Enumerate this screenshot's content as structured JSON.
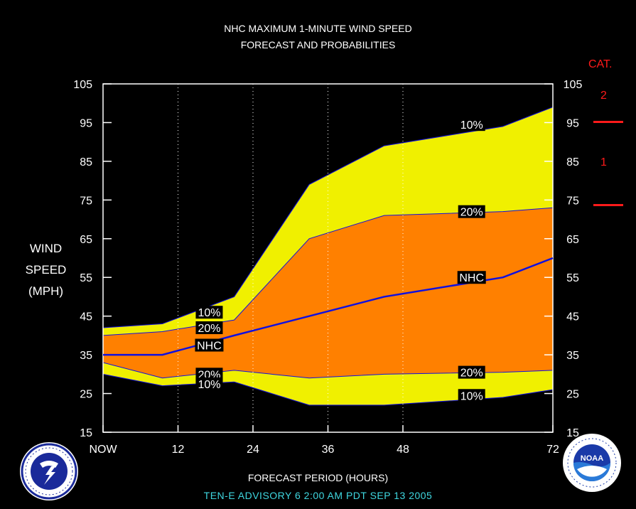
{
  "header": {
    "title_line1": "NHC MAXIMUM 1-MINUTE WIND SPEED",
    "title_line2": "FORECAST AND PROBABILITIES"
  },
  "category_scale": {
    "title": "CAT.",
    "labels": [
      "2",
      "1"
    ],
    "color": "#ff1a1a"
  },
  "footer": {
    "xlabel": "FORECAST PERIOD (HOURS)",
    "advisory": "TEN-E   ADVISORY  6 2:00  AM  PDT  SEP  13  2005"
  },
  "logos": {
    "left": "nws-logo-icon",
    "right": "noaa-logo-icon",
    "noaa_text": "NOAA"
  },
  "chart_data": {
    "type": "area",
    "ylabel": [
      "WIND",
      "SPEED",
      "(MPH)"
    ],
    "xlabel": "FORECAST PERIOD (HOURS)",
    "xlim": [
      0,
      72
    ],
    "ylim": [
      15,
      105
    ],
    "x_ticks": [
      0,
      12,
      24,
      36,
      48,
      72
    ],
    "x_tick_labels": [
      "NOW",
      "12",
      "24",
      "36",
      "48",
      "72"
    ],
    "y_ticks": [
      15,
      25,
      35,
      45,
      55,
      65,
      75,
      85,
      95,
      105
    ],
    "x_dotted_gridlines": [
      12,
      24,
      36,
      48
    ],
    "x": [
      0,
      9.5,
      21,
      33,
      45,
      64,
      72
    ],
    "series": [
      {
        "label": "10%",
        "color": "#f0f000",
        "upper": [
          42,
          43,
          50,
          79,
          89,
          94,
          99
        ],
        "lower": [
          30,
          27,
          28,
          22,
          22,
          24,
          26
        ]
      },
      {
        "label": "20%",
        "color": "#ff8000",
        "upper": [
          40,
          41,
          44,
          65,
          71,
          72,
          73
        ],
        "lower": [
          33,
          29,
          31,
          29,
          30,
          30.5,
          31
        ]
      },
      {
        "label": "NHC",
        "color": "#1010e0",
        "values": [
          35,
          35,
          40,
          45,
          50,
          55,
          60
        ]
      }
    ],
    "annotations": [
      {
        "text": "10%",
        "x": 17,
        "y": 46
      },
      {
        "text": "20%",
        "x": 17,
        "y": 42
      },
      {
        "text": "NHC",
        "x": 17,
        "y": 37.5
      },
      {
        "text": "20%",
        "x": 17,
        "y": 30
      },
      {
        "text": "10%",
        "x": 17,
        "y": 27.5
      },
      {
        "text": "10%",
        "x": 59,
        "y": 94.5
      },
      {
        "text": "20%",
        "x": 59,
        "y": 72
      },
      {
        "text": "NHC",
        "x": 59,
        "y": 55
      },
      {
        "text": "20%",
        "x": 59,
        "y": 30.5
      },
      {
        "text": "10%",
        "x": 59,
        "y": 24.5
      }
    ]
  }
}
